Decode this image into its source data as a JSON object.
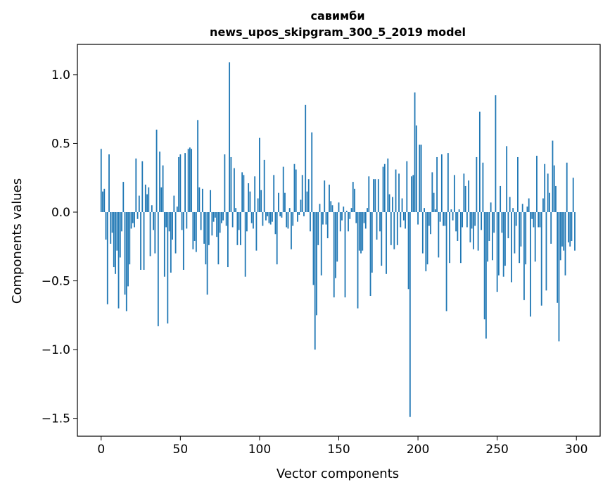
{
  "chart_data": {
    "type": "bar",
    "title_line1": "савимби",
    "title_line2": "news_upos_skipgram_300_5_2019 model",
    "xlabel": "Vector components",
    "ylabel": "Components values",
    "xlim": [
      -15,
      315
    ],
    "ylim": [
      -1.63,
      1.22
    ],
    "xticks": [
      0,
      50,
      100,
      150,
      200,
      250,
      300
    ],
    "xtick_labels": [
      "0",
      "50",
      "100",
      "150",
      "200",
      "250",
      "300"
    ],
    "yticks": [
      1.0,
      0.5,
      0.0,
      -0.5,
      -1.0,
      -1.5
    ],
    "ytick_labels": [
      "1.0",
      "0.5",
      "0.0",
      "−0.5",
      "−1.0",
      "−1.5"
    ],
    "bar_color": "#1f77b4",
    "grid": false,
    "legend": "none",
    "x": "indices 0..299",
    "values": [
      0.46,
      0.15,
      0.17,
      -0.2,
      -0.67,
      0.42,
      -0.23,
      -0.15,
      -0.4,
      -0.45,
      -0.28,
      -0.7,
      -0.33,
      -0.14,
      0.22,
      -0.6,
      -0.72,
      -0.54,
      -0.38,
      -0.12,
      -0.08,
      -0.11,
      0.39,
      -0.05,
      0.12,
      -0.42,
      0.37,
      -0.42,
      0.2,
      0.13,
      0.18,
      -0.32,
      0.05,
      -0.13,
      -0.3,
      0.6,
      -0.83,
      0.44,
      0.18,
      0.34,
      -0.47,
      -0.11,
      -0.81,
      -0.14,
      -0.44,
      -0.2,
      0.12,
      -0.3,
      0.04,
      0.4,
      0.42,
      -0.13,
      -0.42,
      0.43,
      -0.12,
      0.46,
      0.47,
      0.46,
      -0.27,
      -0.21,
      -0.29,
      0.67,
      0.18,
      -0.13,
      0.17,
      -0.23,
      -0.38,
      -0.6,
      -0.24,
      0.16,
      -0.17,
      -0.07,
      -0.04,
      -0.18,
      -0.38,
      -0.15,
      -0.08,
      -0.06,
      0.42,
      -0.1,
      -0.4,
      1.09,
      0.4,
      -0.11,
      0.32,
      0.03,
      -0.24,
      -0.13,
      -0.24,
      0.29,
      0.27,
      -0.47,
      -0.14,
      0.21,
      0.15,
      -0.08,
      -0.12,
      0.26,
      -0.28,
      0.1,
      0.54,
      0.16,
      -0.1,
      0.38,
      -0.06,
      -0.03,
      -0.08,
      -0.09,
      -0.07,
      0.27,
      -0.16,
      -0.38,
      0.14,
      -0.03,
      -0.04,
      0.33,
      0.14,
      -0.11,
      -0.12,
      0.03,
      -0.27,
      -0.1,
      0.35,
      0.31,
      -0.07,
      -0.02,
      0.09,
      0.27,
      -0.03,
      0.78,
      0.15,
      0.24,
      -0.14,
      0.58,
      -0.53,
      -1.0,
      -0.75,
      -0.24,
      0.06,
      -0.46,
      -0.09,
      0.23,
      -0.09,
      -0.19,
      0.2,
      0.08,
      0.05,
      -0.62,
      -0.48,
      -0.36,
      0.07,
      -0.14,
      -0.06,
      0.04,
      -0.62,
      0.01,
      -0.14,
      -0.05,
      0.03,
      0.22,
      0.17,
      -0.08,
      -0.7,
      -0.28,
      -0.3,
      -0.28,
      -0.08,
      -0.12,
      0.03,
      0.26,
      -0.61,
      -0.44,
      0.24,
      0.24,
      -0.2,
      0.24,
      -0.14,
      -0.39,
      0.33,
      0.35,
      -0.45,
      0.39,
      0.13,
      -0.24,
      0.11,
      -0.27,
      0.31,
      -0.24,
      0.28,
      -0.11,
      0.1,
      -0.06,
      -0.12,
      0.37,
      -0.56,
      -1.49,
      0.26,
      0.27,
      0.87,
      0.63,
      -0.09,
      0.49,
      0.49,
      -0.3,
      0.03,
      -0.43,
      -0.38,
      -0.1,
      -0.16,
      0.29,
      0.14,
      0.02,
      0.4,
      -0.33,
      -0.07,
      0.42,
      -0.1,
      -0.1,
      -0.72,
      0.43,
      -0.37,
      0.02,
      -0.06,
      0.27,
      -0.14,
      -0.21,
      0.02,
      -0.37,
      -0.11,
      0.28,
      0.19,
      -0.11,
      0.23,
      -0.22,
      -0.12,
      -0.27,
      -0.1,
      0.4,
      -0.28,
      0.73,
      -0.13,
      0.36,
      -0.78,
      -0.92,
      -0.36,
      -0.21,
      0.07,
      -0.35,
      -0.15,
      0.85,
      -0.58,
      -0.46,
      0.19,
      -0.15,
      -0.47,
      -0.39,
      0.48,
      -0.19,
      0.11,
      -0.51,
      0.03,
      -0.3,
      -0.1,
      0.4,
      -0.37,
      -0.25,
      0.06,
      -0.64,
      -0.38,
      0.04,
      0.1,
      -0.76,
      -0.05,
      -0.11,
      -0.36,
      0.41,
      -0.11,
      -0.11,
      -0.68,
      0.1,
      0.35,
      -0.57,
      0.28,
      0.14,
      -0.23,
      0.52,
      0.34,
      0.19,
      -0.66,
      -0.94,
      -0.35,
      -0.25,
      -0.28,
      -0.46,
      0.36,
      -0.22,
      -0.25,
      -0.21,
      0.25,
      -0.28
    ]
  }
}
